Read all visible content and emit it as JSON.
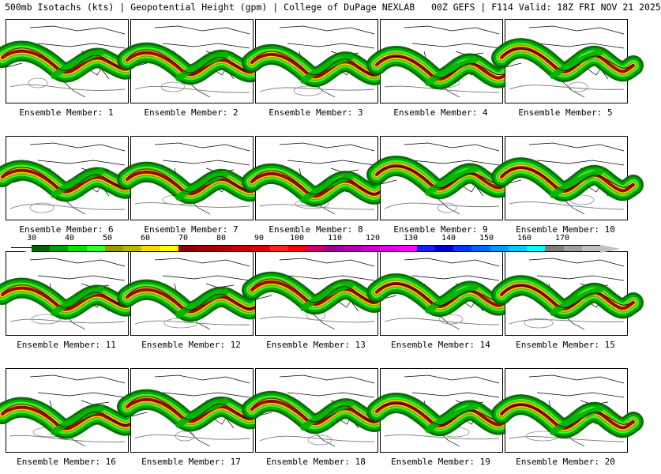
{
  "header": {
    "title": "500mb Isotachs (kts) | Geopotential Height (gpm) | College of DuPage NEXLAB   00Z GEFS | F114 Valid: 18Z FRI NOV 21 2025"
  },
  "colors": {
    "green_dark": "#006400",
    "green": "#00b400",
    "green_light": "#33ff33",
    "olive": "#999900",
    "yellow": "#ffd700",
    "maroon": "#8b0000",
    "red": "#cc0000"
  },
  "panels": [
    {
      "label": "Ensemble Member: 1"
    },
    {
      "label": "Ensemble Member: 2"
    },
    {
      "label": "Ensemble Member: 3"
    },
    {
      "label": "Ensemble Member: 4"
    },
    {
      "label": "Ensemble Member: 5"
    },
    {
      "label": "Ensemble Member: 6"
    },
    {
      "label": "Ensemble Member: 7"
    },
    {
      "label": "Ensemble Member: 8"
    },
    {
      "label": "Ensemble Member: 9"
    },
    {
      "label": "Ensemble Member: 10"
    },
    {
      "label": "Ensemble Member: 11"
    },
    {
      "label": "Ensemble Member: 12"
    },
    {
      "label": "Ensemble Member: 13"
    },
    {
      "label": "Ensemble Member: 14"
    },
    {
      "label": "Ensemble Member: 15"
    },
    {
      "label": "Ensemble Member: 16"
    },
    {
      "label": "Ensemble Member: 17"
    },
    {
      "label": "Ensemble Member: 18"
    },
    {
      "label": "Ensemble Member: 19"
    },
    {
      "label": "Ensemble Member: 20"
    }
  ],
  "colorbar": {
    "labels": [
      "30",
      "40",
      "50",
      "60",
      "70",
      "80",
      "90",
      "100",
      "110",
      "120",
      "130",
      "140",
      "150",
      "160",
      "170"
    ],
    "colors": [
      "#006400",
      "#00a000",
      "#00e600",
      "#33ff33",
      "#999900",
      "#b8b800",
      "#ffd700",
      "#ffff00",
      "#8b0000",
      "#a00000",
      "#b40000",
      "#cc0000",
      "#e00000",
      "#ff2020",
      "#ff0000",
      "#cc0066",
      "#990099",
      "#b300b3",
      "#cc00cc",
      "#e600e6",
      "#ff00ff",
      "#1a1aff",
      "#0000cc",
      "#0033ff",
      "#0066ff",
      "#0099ff",
      "#00ccff",
      "#00ffff",
      "#808080",
      "#a0a0a0",
      "#c0c0c0"
    ]
  }
}
